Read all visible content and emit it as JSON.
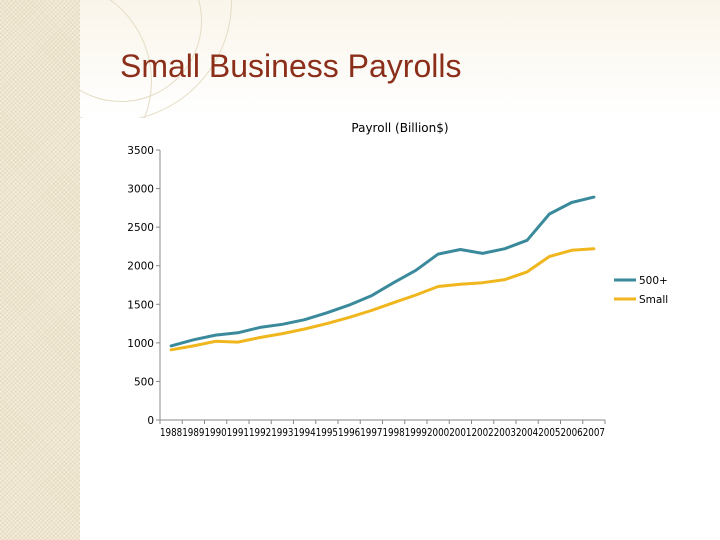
{
  "slide": {
    "title": "Small Business Payrolls"
  },
  "colors": {
    "title": "#8b2e1a",
    "series_500": "#3a8a9c",
    "series_small": "#f0b61e",
    "axis": "#888888"
  },
  "chart_data": {
    "type": "line",
    "title": "Payroll (Billion$)",
    "xlabel": "",
    "ylabel": "",
    "ylim": [
      0,
      3500
    ],
    "yticks": [
      0,
      500,
      1000,
      1500,
      2000,
      2500,
      3000,
      3500
    ],
    "categories": [
      "1988",
      "1989",
      "1990",
      "1991",
      "1992",
      "1993",
      "1994",
      "1995",
      "1996",
      "1997",
      "1998",
      "1999",
      "2000",
      "2001",
      "2002",
      "2003",
      "2004",
      "2005",
      "2006",
      "2007"
    ],
    "series": [
      {
        "name": "500+",
        "color": "#3a8a9c",
        "values": [
          960,
          1040,
          1100,
          1130,
          1200,
          1240,
          1300,
          1390,
          1490,
          1610,
          1780,
          1940,
          2150,
          2210,
          2160,
          2220,
          2330,
          2670,
          2820,
          2890
        ]
      },
      {
        "name": "Small",
        "color": "#f0b61e",
        "values": [
          910,
          960,
          1020,
          1010,
          1070,
          1120,
          1180,
          1250,
          1330,
          1420,
          1520,
          1620,
          1730,
          1760,
          1780,
          1820,
          1920,
          2120,
          2200,
          2220
        ]
      }
    ],
    "legend": {
      "position": "right"
    },
    "grid": false
  }
}
